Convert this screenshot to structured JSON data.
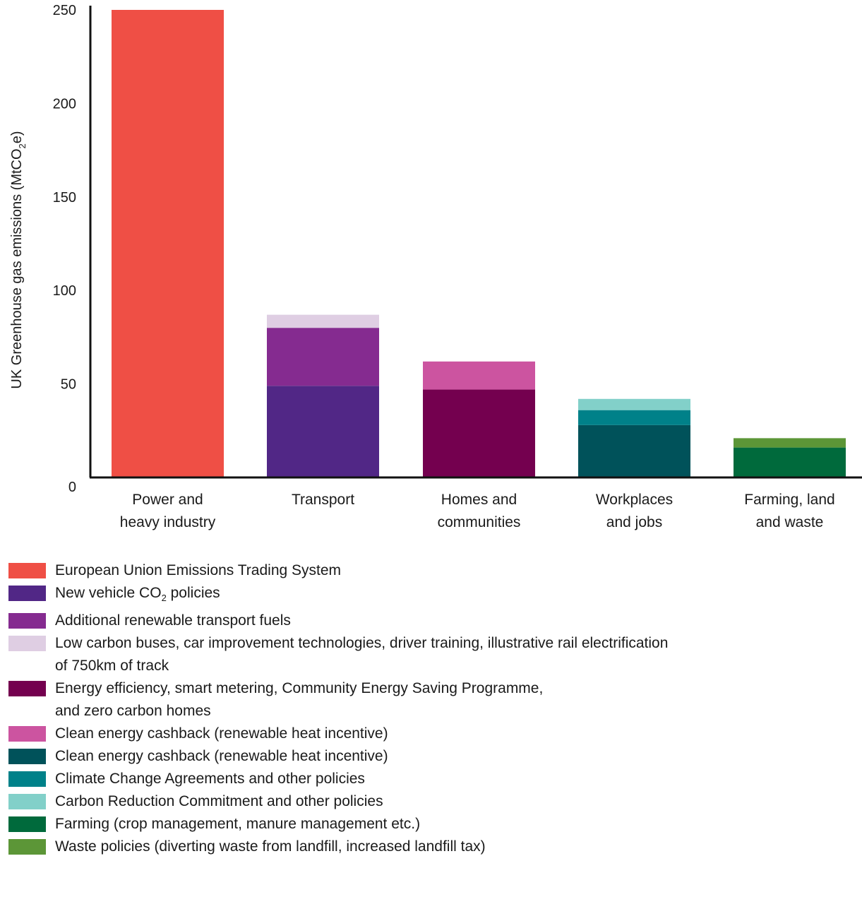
{
  "chart_data": {
    "type": "bar",
    "stacked": true,
    "ylabel": "UK Greenhouse gas emissions (MtCO",
    "ylabel_sub": "2",
    "ylabel_suffix": "e)",
    "ylim": [
      0,
      250
    ],
    "yticks": [
      "0",
      "50",
      "100",
      "150",
      "200",
      "250"
    ],
    "categories": [
      [
        "Power and",
        "heavy industry"
      ],
      [
        "Transport"
      ],
      [
        "Homes and",
        "communities"
      ],
      [
        "Workplaces",
        "and jobs"
      ],
      [
        "Farming, land",
        "and waste"
      ]
    ],
    "series": [
      {
        "name": "European Union Emissions Trading System",
        "color": "#ef4f45",
        "category": 0,
        "value": 250
      },
      {
        "name": "New  vehicle CO",
        "name_sub": "2",
        "name_suffix": " policies",
        "color": "#512786",
        "category": 1,
        "value": 49
      },
      {
        "name": "Additional renewable transport fuels",
        "color": "#852b90",
        "category": 1,
        "value": 31
      },
      {
        "name": "Low carbon buses, car improvement technologies, driver training, illustrative rail electrification",
        "name_line2": "of 750km of track",
        "color": "#dfcee3",
        "category": 1,
        "value": 7
      },
      {
        "name": "Energy efficiency, smart metering, Community Energy Saving Programme,",
        "name_line2": "and zero carbon homes",
        "color": "#74004f",
        "category": 2,
        "value": 47
      },
      {
        "name": "Clean energy cashback (renewable heat incentive)",
        "color": "#cc54a0",
        "category": 2,
        "value": 15
      },
      {
        "name": "Clean energy cashback (renewable heat incentive)",
        "color": "#00525a",
        "category": 3,
        "value": 28
      },
      {
        "name": "Climate Change Agreements and other policies",
        "color": "#008189",
        "category": 3,
        "value": 8
      },
      {
        "name": "Carbon Reduction Commitment and other policies",
        "color": "#82d0c9",
        "category": 3,
        "value": 6
      },
      {
        "name": "Farming (crop management, manure management etc.)",
        "color": "#006a3c",
        "category": 4,
        "value": 16
      },
      {
        "name": "Waste policies (diverting waste from landfill, increased landfill tax)",
        "color": "#5c9637",
        "category": 4,
        "value": 5
      }
    ]
  }
}
